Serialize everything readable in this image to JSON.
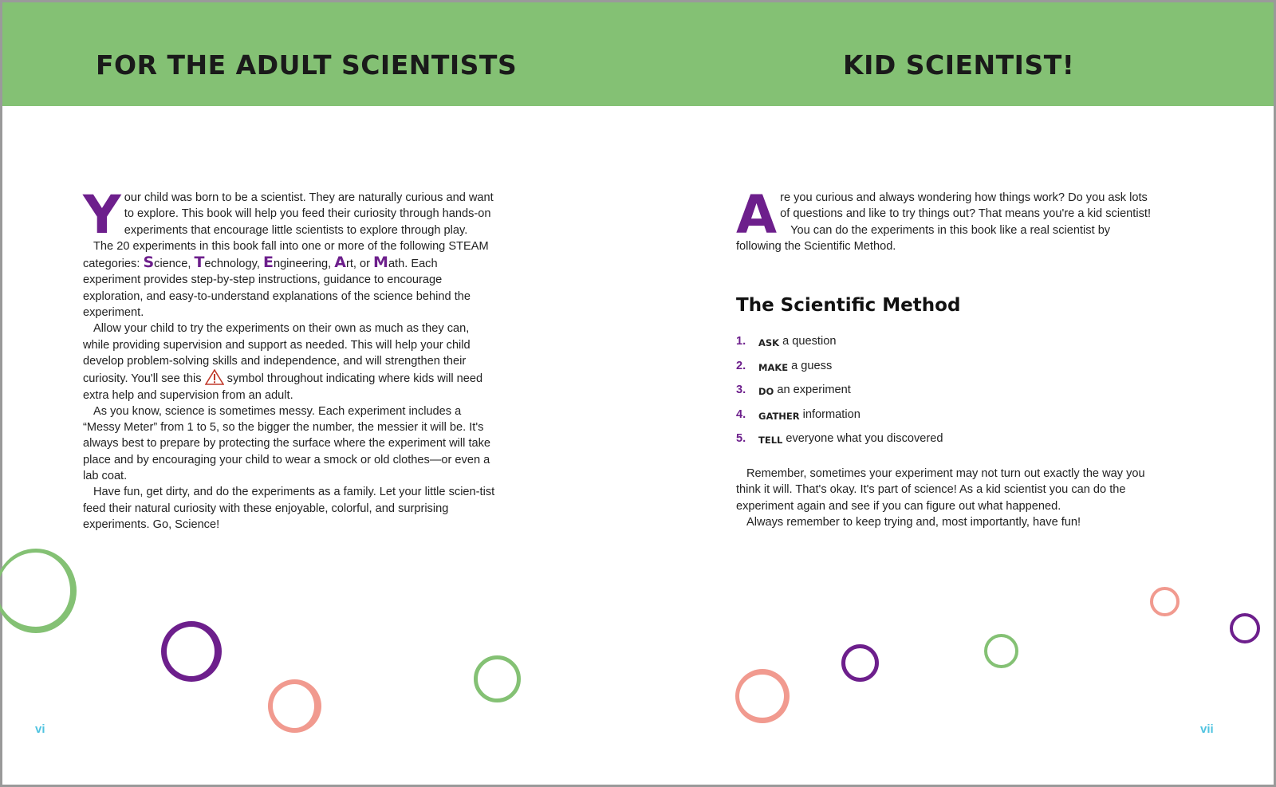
{
  "left_page": {
    "title": "FOR THE ADULT SCIENTISTS",
    "drop_cap": "Y",
    "p1": "our child was born to be a scientist. They are naturally curious and want to explore. This book will help you feed their curiosity through hands-on experiments that encourage little scientists to explore through play.",
    "p2_start": "The 20 experiments in this book fall into one or more of the following STEAM categories: ",
    "steam": [
      {
        "letter": "S",
        "rest": "cience, "
      },
      {
        "letter": "T",
        "rest": "echnology, "
      },
      {
        "letter": "E",
        "rest": "ngineering, "
      },
      {
        "letter": "A",
        "rest": "rt, or "
      },
      {
        "letter": "M",
        "rest": "ath."
      }
    ],
    "p2_end": " Each experiment provides step-by-step instructions, guidance to encourage exploration, and easy-to-understand explanations of the science behind the experiment.",
    "p3_start": "Allow your child to try the experiments on their own as much as they can, while providing supervision and support as needed. This will help your child develop problem-solving skills and independence, and will strengthen their curiosity. You'll see this ",
    "p3_icon": "warning-triangle-icon",
    "p3_end": " symbol throughout indicating where kids will need extra help and supervision from an adult.",
    "p4": "As you know, science is sometimes messy. Each experiment includes a “Messy Meter” from 1 to 5, so the bigger the number, the messier it will be. It's always best to prepare by protecting the surface where the experiment will take place and by encouraging your child to wear a smock or old clothes—or even a lab coat.",
    "p5": "Have fun, get dirty, and do the experiments as a family. Let your little scien-tist feed their natural curiosity with these enjoyable, colorful, and surprising experiments. Go, Science!",
    "page_number": "vi"
  },
  "right_page": {
    "title": "KID SCIENTIST!",
    "drop_cap": "A",
    "p1": "re you curious and always wondering how things work? Do you ask lots of questions and like to try things out? That means you're a kid scientist!",
    "p2": "You can do the experiments in this book like a real scientist by following the Scientific Method.",
    "heading": "The Scientific Method",
    "steps": [
      {
        "num": "1.",
        "keyword": "ASK",
        "text": "a question"
      },
      {
        "num": "2.",
        "keyword": "MAKE",
        "text": "a guess"
      },
      {
        "num": "3.",
        "keyword": "DO",
        "text": "an experiment"
      },
      {
        "num": "4.",
        "keyword": "GATHER",
        "text": "information"
      },
      {
        "num": "5.",
        "keyword": "TELL",
        "text": "everyone what you discovered"
      }
    ],
    "p3": "Remember, sometimes your experiment may not turn out exactly the way you think it will. That's okay. It's part of science! As a kid scientist you can do the experiment again and see if you can figure out what happened.",
    "p4": "Always remember to keep trying and, most importantly, have fun!",
    "page_number": "vii"
  },
  "colors": {
    "header_green": "#84c174",
    "accent_purple": "#6d1f8c",
    "ring_pink": "#f19a8f",
    "page_number_cyan": "#4fc3e0"
  }
}
